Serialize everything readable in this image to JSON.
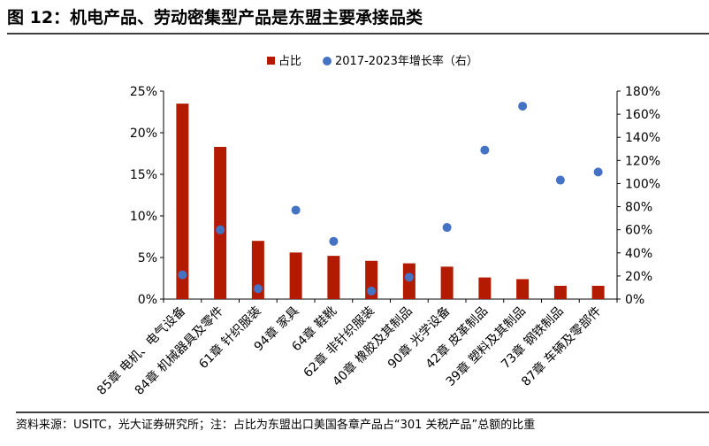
{
  "title": "图 12：机电产品、劳动密集型产品是东盟主要承接品类",
  "source": "资料来源：USITC，光大证券研究所；注：占比为东盟出口美国各章产品占“301 关税产品”总额的比重",
  "chart_data": {
    "type": "bar+scatter",
    "categories": [
      "85章 电机、电气设备",
      "84章 机械器具及零件",
      "61章 针织服装",
      "94章 家具",
      "64章 鞋靴",
      "62章 非针织服装",
      "40章 橡胶及其制品",
      "90章 光学设备",
      "42章 皮革制品",
      "39章 塑料及其制品",
      "73章 钢铁制品",
      "87章 车辆及零部件"
    ],
    "series": [
      {
        "name": "占比",
        "type": "bar",
        "axis": "left",
        "color": "#B31B00",
        "values": [
          23.5,
          18.3,
          7.0,
          5.6,
          5.2,
          4.6,
          4.3,
          3.9,
          2.6,
          2.4,
          1.6,
          1.6
        ]
      },
      {
        "name": "2017-2023年增长率（右）",
        "type": "scatter",
        "axis": "right",
        "color": "#4472C4",
        "values": [
          21,
          60,
          9,
          77,
          50,
          7,
          19,
          62,
          129,
          167,
          103,
          110
        ]
      }
    ],
    "left_axis": {
      "ylim": [
        0,
        25
      ],
      "ticks": [
        "0%",
        "5%",
        "10%",
        "15%",
        "20%",
        "25%"
      ]
    },
    "right_axis": {
      "ylim": [
        0,
        180
      ],
      "ticks": [
        "0%",
        "20%",
        "40%",
        "60%",
        "80%",
        "100%",
        "120%",
        "140%",
        "160%",
        "180%"
      ]
    },
    "legend": "top",
    "grid": false
  }
}
